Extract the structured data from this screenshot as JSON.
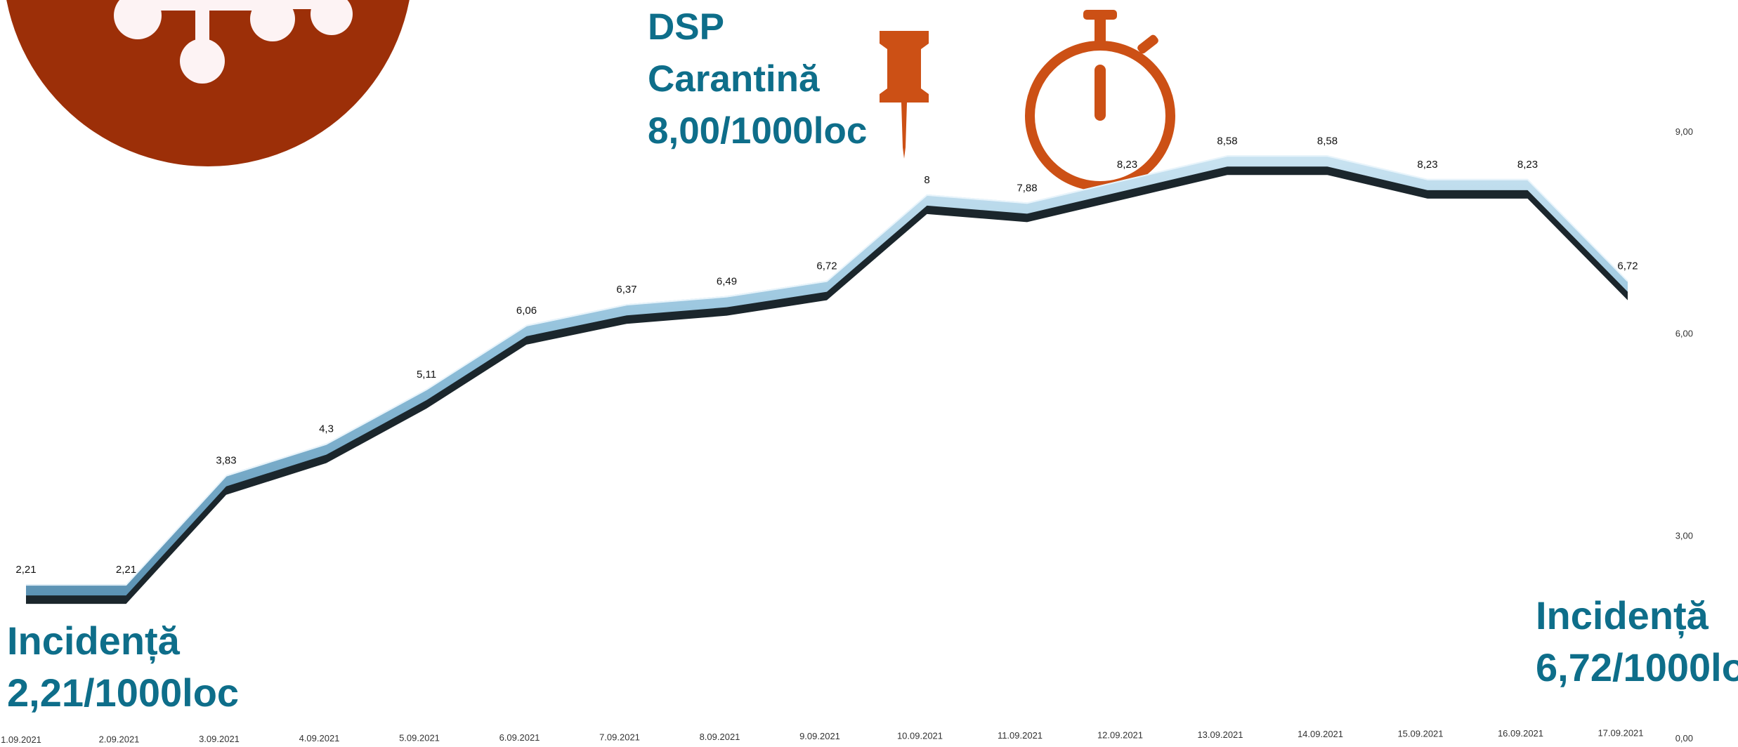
{
  "colors": {
    "logo_circle": "#9c2f08",
    "logo_glyph": "#fdf3f4",
    "accent_orange": "#cc5015",
    "callout_text": "#0e6e8a",
    "line_face": "#8fbfda",
    "line_shadow": "#1b262c"
  },
  "icons": {
    "logo": "virus-logo-icon",
    "pin": "pushpin-icon",
    "timer": "stopwatch-icon"
  },
  "callouts": {
    "dsp": {
      "line1": "DSP",
      "line2": "Carantină",
      "line3": "8,00/1000loc"
    },
    "start": {
      "line1": "Incidență",
      "line2": "2,21/1000loc"
    },
    "end": {
      "line1": "Incidență",
      "line2": "6,72/1000lo"
    }
  },
  "chart_data": {
    "type": "line",
    "title": "",
    "xlabel": "",
    "ylabel": "",
    "categories": [
      "1.09.2021",
      "2.09.2021",
      "3.09.2021",
      "4.09.2021",
      "5.09.2021",
      "6.09.2021",
      "7.09.2021",
      "8.09.2021",
      "9.09.2021",
      "10.09.2021",
      "11.09.2021",
      "12.09.2021",
      "13.09.2021",
      "14.09.2021",
      "15.09.2021",
      "16.09.2021",
      "17.09.2021"
    ],
    "series": [
      {
        "values": [
          2.21,
          2.21,
          3.83,
          4.3,
          5.11,
          6.06,
          6.37,
          6.49,
          6.72,
          8,
          7.88,
          8.23,
          8.58,
          8.58,
          8.23,
          8.23,
          6.72
        ],
        "data_labels": [
          "2,21",
          "2,21",
          "3,83",
          "4,3",
          "5,11",
          "6,06",
          "6,37",
          "6,49",
          "6,72",
          "8",
          "7,88",
          "8,23",
          "8,58",
          "8,58",
          "8,23",
          "8,23",
          "6,72"
        ]
      }
    ],
    "y_ticks": [
      "0,00",
      "3,00",
      "6,00",
      "9,00"
    ],
    "y_tick_values": [
      0,
      3,
      6,
      9
    ],
    "ylim": [
      0,
      9
    ],
    "y_axis_side": "right",
    "grid": false,
    "legend": "none"
  }
}
